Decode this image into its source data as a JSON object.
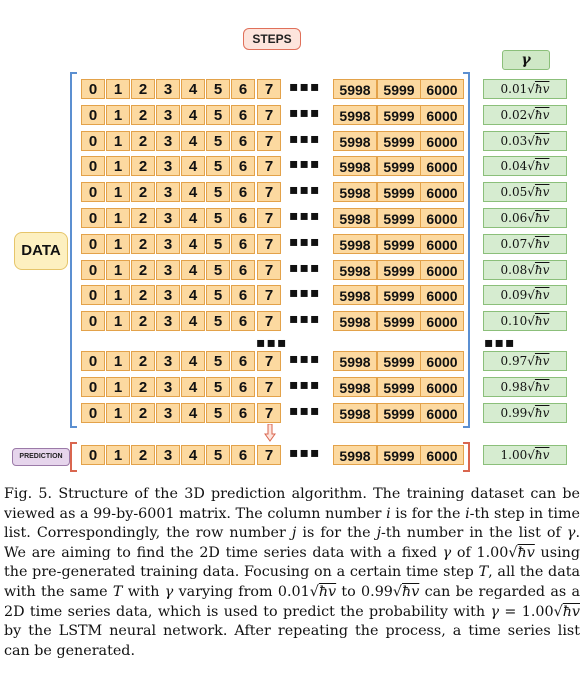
{
  "figure": {
    "steps_label": "STEPS",
    "gamma_label": "γ",
    "data_label": "DATA",
    "prediction_label": "PREDICTION",
    "step_cells_start": [
      "0",
      "1",
      "2",
      "3",
      "4",
      "5",
      "6",
      "7"
    ],
    "step_dots": "▪▪▪",
    "step_cells_end": [
      "5998",
      "5999",
      "6000"
    ],
    "row_dots": "▪▪▪",
    "gamma_dots": "▪▪▪",
    "hbar_unit": "ħv",
    "gamma_values_top": [
      "0.01",
      "0.02",
      "0.03",
      "0.04",
      "0.05",
      "0.06",
      "0.07",
      "0.08",
      "0.09",
      "0.10"
    ],
    "gamma_values_bottom": [
      "0.97",
      "0.98",
      "0.99"
    ],
    "gamma_prediction": "1.00",
    "colors": {
      "cell_fill": "#fcd9a0",
      "cell_border": "#e3a24a",
      "bracket": "#5b8fd1",
      "prediction_bracket": "#d9664f",
      "gamma_fill": "#d6ecd0"
    }
  },
  "caption": {
    "p1": "Fig. 5. Structure of the 3D prediction algorithm. The training dataset can be viewed as a 99-by-6001 matrix. The column number ",
    "i": "i",
    "p2": " is for the ",
    "i2": "i",
    "p3": "-th step in time list. Correspondingly, the row number ",
    "j": "j",
    "p4": " is for the ",
    "j2": "j",
    "p5": "-th number in the list of ",
    "gamma": "γ",
    "p6": ". We are aiming to find the 2D time series data with a fixed ",
    "gamma2": "γ",
    "p7": " of 1.00",
    "p8": " using the pre-generated training data. Focusing on a certain time step ",
    "T": "T",
    "p9": ", all the data with the same ",
    "T2": "T",
    "p10": " with ",
    "gamma3": "γ",
    "p11": " varying from 0.01",
    "p12": " to 0.99",
    "p13": " can be regarded as a 2D time series data, which is used to predict the probability with ",
    "gamma4": "γ",
    "p14": " = 1.00",
    "p15": " by the LSTM neural network. After repeating the process, a time series list can be generated.",
    "sqrt_sym": "√",
    "hbar": "ħv"
  }
}
